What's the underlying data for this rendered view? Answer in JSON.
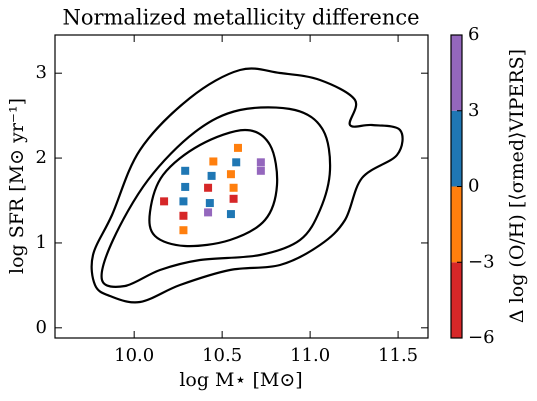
{
  "chart_data": {
    "type": "scatter",
    "title": "Normalized metallicity difference",
    "x_label": "log M⋆ [M⊙]",
    "y_label": "log SFR [M⊙ yr⁻¹]",
    "xlim": [
      9.55,
      11.67
    ],
    "ylim": [
      -0.12,
      3.45
    ],
    "xticks": [
      {
        "value": 10.0,
        "label": "10.0"
      },
      10.5,
      {
        "value": 11.0,
        "label": "11.0"
      },
      11.5
    ],
    "yticks": [
      0,
      1,
      2,
      3
    ],
    "marker": "square",
    "series": [
      {
        "color": "#d62728",
        "x": [
          10.17,
          10.28,
          10.42,
          10.565
        ],
        "y": [
          1.49,
          1.32,
          1.65,
          1.52
        ]
      },
      {
        "color": "#ff7f0e",
        "x": [
          10.45,
          10.59,
          10.55,
          10.565,
          10.28
        ],
        "y": [
          1.96,
          2.12,
          1.81,
          1.65,
          1.15
        ]
      },
      {
        "color": "#1f77b4",
        "x": [
          10.29,
          10.29,
          10.28,
          10.44,
          10.43,
          10.58,
          10.55
        ],
        "y": [
          1.85,
          1.66,
          1.49,
          1.79,
          1.47,
          1.95,
          1.34
        ]
      },
      {
        "color": "#9467bd",
        "x": [
          10.72,
          10.72,
          10.42
        ],
        "y": [
          1.95,
          1.85,
          1.36
        ]
      }
    ],
    "colorbar": {
      "label": "Δ log (O/H) [⟨σmed⟩VIPERS]",
      "bounds": [
        -6,
        -3,
        0,
        3,
        6
      ],
      "colors": [
        "#d62728",
        "#ff7f0e",
        "#1f77b4",
        "#9467bd"
      ],
      "lim": [
        -6,
        6
      ],
      "ticks": [
        {
          "value": -6,
          "label": "−6"
        },
        {
          "value": -3,
          "label": "−3"
        },
        0,
        3,
        6
      ]
    }
  }
}
